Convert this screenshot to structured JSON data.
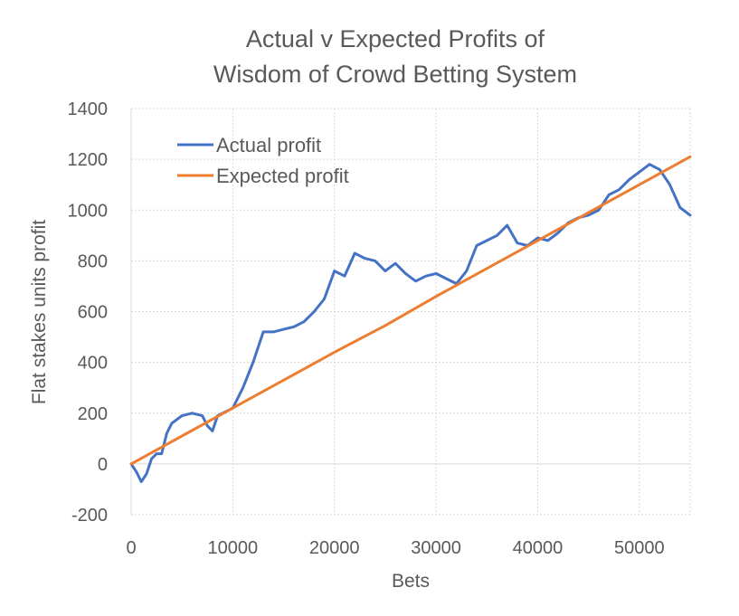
{
  "chart_data": {
    "type": "line",
    "title_lines": [
      "Actual v Expected Profits of",
      "Wisdom of Crowd Betting System"
    ],
    "xlabel": "Bets",
    "ylabel": "Flat stakes units profit",
    "xlim": [
      0,
      55000
    ],
    "ylim": [
      -200,
      1400
    ],
    "x_ticks": [
      0,
      10000,
      20000,
      30000,
      40000,
      50000
    ],
    "y_ticks": [
      -200,
      0,
      200,
      400,
      600,
      800,
      1000,
      1200,
      1400
    ],
    "grid": true,
    "legend_position": "top-left",
    "series": [
      {
        "name": "Actual profit",
        "color": "#4472c4",
        "x": [
          0,
          500,
          1000,
          1500,
          2000,
          2500,
          3000,
          3500,
          4000,
          5000,
          6000,
          7000,
          7500,
          8000,
          8500,
          9000,
          10000,
          11000,
          12000,
          13000,
          14000,
          15000,
          16000,
          17000,
          18000,
          19000,
          20000,
          21000,
          22000,
          22500,
          23000,
          24000,
          25000,
          26000,
          27000,
          28000,
          29000,
          30000,
          31000,
          32000,
          33000,
          34000,
          35000,
          36000,
          37000,
          38000,
          39000,
          40000,
          41000,
          42000,
          43000,
          44000,
          45000,
          46000,
          47000,
          48000,
          49000,
          50000,
          51000,
          52000,
          53000,
          54000,
          55000
        ],
        "y": [
          0,
          -30,
          -70,
          -40,
          20,
          40,
          40,
          120,
          160,
          190,
          200,
          190,
          150,
          130,
          190,
          200,
          220,
          300,
          400,
          520,
          520,
          530,
          540,
          560,
          600,
          650,
          760,
          740,
          830,
          820,
          810,
          800,
          760,
          790,
          750,
          720,
          740,
          750,
          730,
          710,
          760,
          860,
          880,
          900,
          940,
          870,
          860,
          890,
          880,
          910,
          950,
          970,
          980,
          1000,
          1060,
          1080,
          1120,
          1150,
          1180,
          1160,
          1100,
          1010,
          980
        ]
      },
      {
        "name": "Expected profit",
        "color": "#ed7d31",
        "x": [
          0,
          5000,
          10000,
          15000,
          20000,
          25000,
          30000,
          35000,
          40000,
          45000,
          50000,
          55000
        ],
        "y": [
          0,
          110,
          220,
          330,
          440,
          545,
          660,
          770,
          880,
          990,
          1100,
          1210
        ]
      }
    ]
  }
}
